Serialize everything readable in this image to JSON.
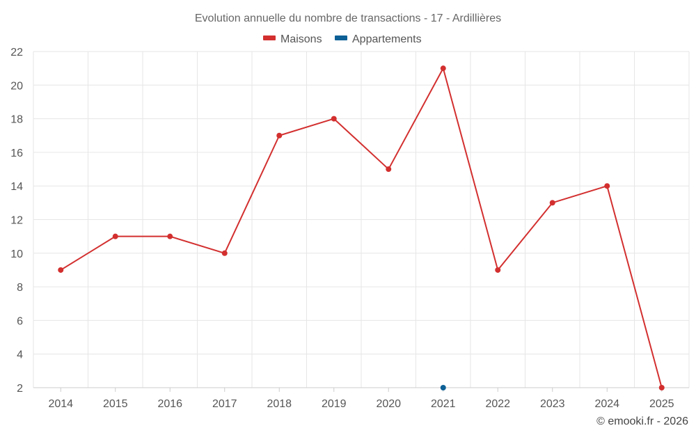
{
  "chart_data": {
    "type": "line",
    "title": "Evolution annuelle du nombre de transactions - 17 - Ardillières",
    "categories": [
      "2014",
      "2015",
      "2016",
      "2017",
      "2018",
      "2019",
      "2020",
      "2021",
      "2022",
      "2023",
      "2024",
      "2025"
    ],
    "series": [
      {
        "name": "Maisons",
        "color": "#d32f2f",
        "values": [
          9,
          11,
          11,
          10,
          17,
          18,
          15,
          21,
          9,
          13,
          14,
          2
        ]
      },
      {
        "name": "Appartements",
        "color": "#0d6096",
        "values": [
          null,
          null,
          null,
          null,
          null,
          null,
          null,
          2,
          null,
          null,
          null,
          null
        ]
      }
    ],
    "ylim": [
      2,
      22
    ],
    "yticks": [
      2,
      4,
      6,
      8,
      10,
      12,
      14,
      16,
      18,
      20,
      22
    ],
    "grid": true,
    "legend": "top-center",
    "credit": "© emooki.fr - 2026"
  }
}
